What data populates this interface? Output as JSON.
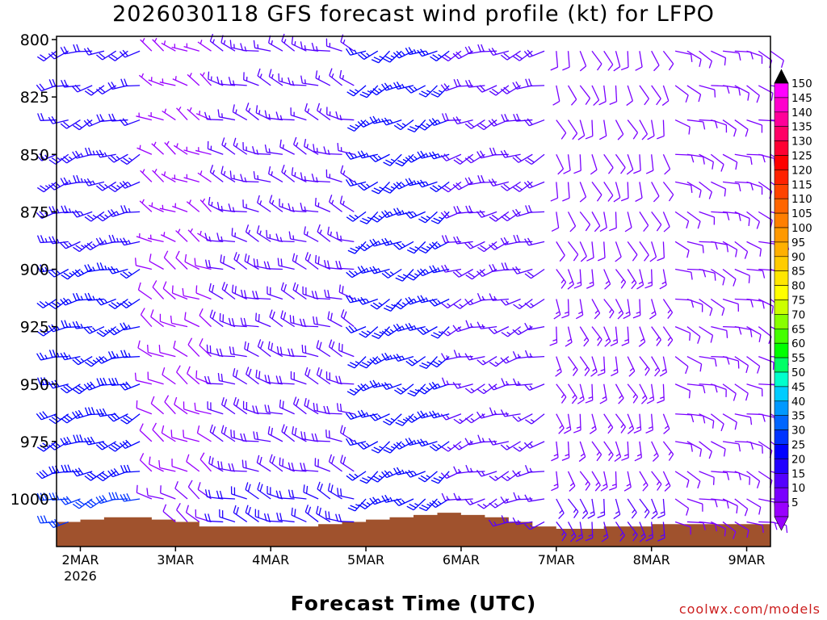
{
  "chart_data": {
    "type": "wind-barb-profile",
    "title": "2026030118 GFS forecast wind profile (kt) for LFPO",
    "xlabel": "Forecast Time (UTC)",
    "ylabel": "",
    "x_ticks": [
      {
        "label": "2MAR",
        "sub": "2026",
        "t": 0
      },
      {
        "label": "3MAR",
        "sub": "",
        "t": 24
      },
      {
        "label": "4MAR",
        "sub": "",
        "t": 48
      },
      {
        "label": "5MAR",
        "sub": "",
        "t": 72
      },
      {
        "label": "6MAR",
        "sub": "",
        "t": 96
      },
      {
        "label": "7MAR",
        "sub": "",
        "t": 120
      },
      {
        "label": "8MAR",
        "sub": "",
        "t": 144
      },
      {
        "label": "9MAR",
        "sub": "",
        "t": 168
      }
    ],
    "y_ticks": [
      "800",
      "825",
      "850",
      "875",
      "900",
      "925",
      "950",
      "975",
      "1000"
    ],
    "ylim": [
      800,
      1020
    ],
    "xlim_hours": [
      -6,
      174
    ],
    "levels": [
      805,
      820,
      835,
      850,
      862,
      875,
      888,
      900,
      913,
      925,
      938,
      950,
      963,
      975,
      988,
      1000,
      1010
    ],
    "time_step_hours": 3,
    "surface_pressure": [
      [
        -6,
        1010
      ],
      [
        0,
        1009
      ],
      [
        6,
        1008
      ],
      [
        12,
        1008
      ],
      [
        18,
        1009
      ],
      [
        24,
        1010
      ],
      [
        30,
        1012
      ],
      [
        36,
        1012
      ],
      [
        42,
        1012
      ],
      [
        48,
        1012
      ],
      [
        54,
        1012
      ],
      [
        60,
        1011
      ],
      [
        66,
        1010
      ],
      [
        72,
        1009
      ],
      [
        78,
        1008
      ],
      [
        84,
        1007
      ],
      [
        90,
        1006
      ],
      [
        96,
        1007
      ],
      [
        102,
        1008
      ],
      [
        108,
        1010
      ],
      [
        114,
        1012
      ],
      [
        120,
        1013
      ],
      [
        126,
        1013
      ],
      [
        132,
        1012
      ],
      [
        138,
        1012
      ],
      [
        144,
        1011
      ],
      [
        150,
        1011
      ],
      [
        156,
        1011
      ],
      [
        162,
        1011
      ],
      [
        168,
        1011
      ],
      [
        174,
        1011
      ]
    ],
    "wind_regimes": [
      {
        "t_from": -6,
        "t_to": 18,
        "dir_deg": 250,
        "speed_low_kt": 30,
        "speed_high_kt": 20
      },
      {
        "t_from": 18,
        "t_to": 36,
        "dir_deg": 300,
        "speed_low_kt": 10,
        "speed_high_kt": 5
      },
      {
        "t_from": 36,
        "t_to": 72,
        "dir_deg": 290,
        "speed_low_kt": 20,
        "speed_high_kt": 15
      },
      {
        "t_from": 72,
        "t_to": 96,
        "dir_deg": 240,
        "speed_low_kt": 25,
        "speed_high_kt": 25
      },
      {
        "t_from": 96,
        "t_to": 120,
        "dir_deg": 250,
        "speed_low_kt": 15,
        "speed_high_kt": 20
      },
      {
        "t_from": 120,
        "t_to": 150,
        "dir_deg": 160,
        "speed_low_kt": 15,
        "speed_high_kt": 10
      },
      {
        "t_from": 150,
        "t_to": 174,
        "dir_deg": 110,
        "speed_low_kt": 10,
        "speed_high_kt": 10
      }
    ],
    "colorbar": {
      "labels": [
        "150",
        "145",
        "140",
        "135",
        "130",
        "125",
        "120",
        "115",
        "110",
        "105",
        "100",
        "95",
        "90",
        "85",
        "80",
        "75",
        "70",
        "65",
        "60",
        "55",
        "50",
        "45",
        "40",
        "35",
        "30",
        "25",
        "20",
        "15",
        "10",
        "5"
      ],
      "colors": [
        "#ff00ff",
        "#ff00cc",
        "#ff0099",
        "#ff0066",
        "#ff0033",
        "#ff0000",
        "#ff2200",
        "#ff4400",
        "#ff6600",
        "#ff7f00",
        "#ff9900",
        "#ffb000",
        "#ffcc00",
        "#ffe600",
        "#ffff00",
        "#ccff00",
        "#88ff00",
        "#44ff00",
        "#00ff00",
        "#00ff66",
        "#00ffcc",
        "#00ccff",
        "#0099ff",
        "#0066ff",
        "#0033ff",
        "#0000ff",
        "#2200ff",
        "#5500ff",
        "#7a00ff",
        "#9900ff"
      ]
    },
    "terrain_color": "#a0522d",
    "grid": false,
    "legend": "right"
  },
  "credit": "coolwx.com/models"
}
